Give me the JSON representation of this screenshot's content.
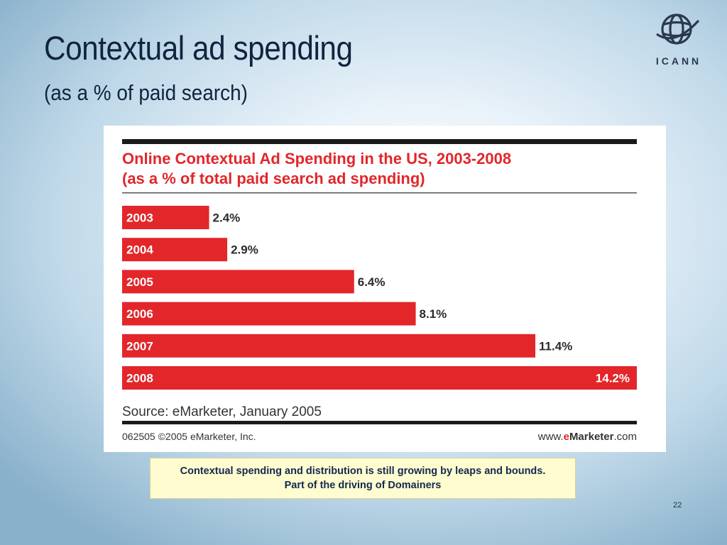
{
  "slide": {
    "title": "Contextual ad spending",
    "subtitle": "(as a % of paid search)",
    "logo_text": "ICANN",
    "page_number": "22",
    "callout": {
      "line1": "Contextual spending and distribution is still growing by leaps and bounds.",
      "line2": "Part of the driving of Domainers"
    }
  },
  "chart_data": {
    "type": "bar",
    "orientation": "horizontal",
    "title_line1": "Online Contextual Ad Spending in the US, 2003-2008",
    "title_line2": "(as a % of total paid search ad spending)",
    "categories": [
      "2003",
      "2004",
      "2005",
      "2006",
      "2007",
      "2008"
    ],
    "values": [
      2.4,
      2.9,
      6.4,
      8.1,
      11.4,
      14.2
    ],
    "value_labels": [
      "2.4%",
      "2.9%",
      "6.4%",
      "8.1%",
      "11.4%",
      "14.2%"
    ],
    "xlim": [
      0,
      14.2
    ],
    "source": "Source: eMarketer, January 2005",
    "copyright": "062505 ©2005 eMarketer, Inc.",
    "footer_brand": {
      "prefix": "www.",
      "accent": "e",
      "rest": "Marketer",
      "suffix": ".com"
    },
    "colors": {
      "bar": "#e2262a",
      "title": "#e2262a",
      "rule": "#1a1a1a",
      "text": "#2b2b2b"
    },
    "grid": false,
    "legend": "none"
  }
}
